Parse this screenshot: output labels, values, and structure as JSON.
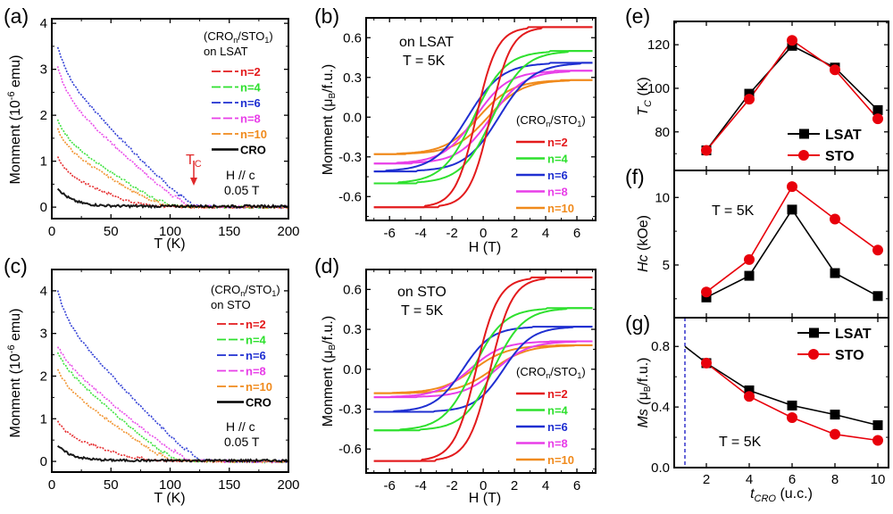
{
  "figure": {
    "panels": [
      "(a)",
      "(b)",
      "(c)",
      "(d)",
      "(e)",
      "(f)",
      "(g)"
    ]
  },
  "colors": {
    "n2": "#e31a1c",
    "n4": "#2ee02e",
    "n6": "#1f2fd1",
    "n8": "#e83ee8",
    "n10": "#f08a1c",
    "CRO": "#000000",
    "LSAT": "#000000",
    "STO": "#e8000b",
    "tc_arrow": "#e0282a",
    "dashed_line": "#3333cc"
  },
  "chart_data": [
    {
      "id": "a",
      "panel_label": "(a)",
      "type": "line",
      "title": "",
      "xlabel": "T (K)",
      "ylabel": "Monment (10^-6 emu)",
      "ylabel_main": "Monment (10",
      "ylabel_sup": "-6",
      "ylabel_tail": " emu)",
      "xlim": [
        0,
        200
      ],
      "ylim": [
        -0.25,
        4.1
      ],
      "xticks": [
        0,
        50,
        100,
        150,
        200
      ],
      "yticks": [
        0,
        1,
        2,
        3,
        4
      ],
      "legend_title_1": "(CRO",
      "legend_title_sub1": "n",
      "legend_title_2": "/STO",
      "legend_title_sub2": "1",
      "legend_title_3": ")",
      "legend_substrate": "on LSAT",
      "legend_placement": "top-right",
      "annotations": {
        "field_dir": "H // c",
        "field_value": "0.05 T",
        "tc_label": "T",
        "tc_sub": "C",
        "tc_at": 120
      },
      "series": [
        {
          "name": "n=2",
          "key": "n2",
          "M0": 1.1,
          "Tc": 80,
          "plateau": 0.75
        },
        {
          "name": "n=4",
          "key": "n4",
          "M0": 1.9,
          "Tc": 100,
          "plateau": 1.55
        },
        {
          "name": "n=6",
          "key": "n6",
          "M0": 3.5,
          "Tc": 120,
          "plateau": 2.95
        },
        {
          "name": "n=8",
          "key": "n8",
          "M0": 3.05,
          "Tc": 115,
          "plateau": 2.5
        },
        {
          "name": "n=10",
          "key": "n10",
          "M0": 1.7,
          "Tc": 95,
          "plateau": 1.35
        },
        {
          "name": "CRO",
          "key": "CRO",
          "M0": 0.4,
          "Tc": 40,
          "plateau": 0.1
        }
      ]
    },
    {
      "id": "c",
      "panel_label": "(c)",
      "type": "line",
      "title": "",
      "xlabel": "T (K)",
      "ylabel": "Monment (10^-6 emu)",
      "ylabel_main": "Monment (10",
      "ylabel_sup": "-6",
      "ylabel_tail": " emu)",
      "xlim": [
        0,
        200
      ],
      "ylim": [
        -0.25,
        4.5
      ],
      "xticks": [
        0,
        50,
        100,
        150,
        200
      ],
      "yticks": [
        0,
        1,
        2,
        3,
        4
      ],
      "legend_title_1": "(CRO",
      "legend_title_sub1": "n",
      "legend_title_2": "/STO",
      "legend_title_sub2": "1",
      "legend_title_3": ")",
      "legend_substrate": "on STO",
      "legend_placement": "top-right",
      "annotations": {
        "field_dir": "H // c",
        "field_value": "0.05 T"
      },
      "series": [
        {
          "name": "n=2",
          "key": "n2",
          "M0": 0.95,
          "Tc": 80,
          "plateau": 0.65
        },
        {
          "name": "n=4",
          "key": "n4",
          "M0": 2.55,
          "Tc": 105,
          "plateau": 2.3
        },
        {
          "name": "n=6",
          "key": "n6",
          "M0": 4.0,
          "Tc": 125,
          "plateau": 3.4
        },
        {
          "name": "n=8",
          "key": "n8",
          "M0": 2.7,
          "Tc": 115,
          "plateau": 2.45
        },
        {
          "name": "n=10",
          "key": "n10",
          "M0": 2.15,
          "Tc": 100,
          "plateau": 1.85
        },
        {
          "name": "CRO",
          "key": "CRO",
          "M0": 0.35,
          "Tc": 40,
          "plateau": 0.1
        }
      ]
    },
    {
      "id": "b",
      "panel_label": "(b)",
      "type": "line",
      "title": "",
      "xlabel": "H (T)",
      "ylabel_main": "Monment (",
      "ylabel_mu": "μ",
      "ylabel_sub": "B",
      "ylabel_tail": "/f.u.)",
      "xlim": [
        -7.5,
        7.2
      ],
      "ylim": [
        -0.78,
        0.75
      ],
      "xticks": [
        -6,
        -4,
        -2,
        0,
        2,
        4,
        6
      ],
      "yticks": [
        -0.6,
        -0.3,
        0.0,
        0.3,
        0.6
      ],
      "ytick_labels": [
        "-0.6",
        "-0.3",
        "0.0",
        "0.3",
        "0.6"
      ],
      "annotation_1": "on LSAT",
      "annotation_2": "T = 5K",
      "legend_title_1": "(CRO",
      "legend_title_sub1": "n",
      "legend_title_2": "/STO",
      "legend_title_sub2": "1",
      "legend_title_3": ")",
      "legend_placement": "bottom-right",
      "series": [
        {
          "name": "n=2",
          "key": "n2",
          "Ms": 0.68,
          "Hc": 0.45,
          "width": 1.6
        },
        {
          "name": "n=4",
          "key": "n4",
          "Ms": 0.5,
          "Hc": 0.6,
          "width": 2.4
        },
        {
          "name": "n=6",
          "key": "n6",
          "Ms": 0.41,
          "Hc": 1.0,
          "width": 2.6
        },
        {
          "name": "n=8",
          "key": "n8",
          "Ms": 0.35,
          "Hc": 0.5,
          "width": 2.5
        },
        {
          "name": "n=10",
          "key": "n10",
          "Ms": 0.28,
          "Hc": 0.3,
          "width": 2.6
        }
      ]
    },
    {
      "id": "d",
      "panel_label": "(d)",
      "type": "line",
      "title": "",
      "xlabel": "H (T)",
      "ylabel_main": "Monment (",
      "ylabel_mu": "μ",
      "ylabel_sub": "B",
      "ylabel_tail": "/f.u.)",
      "xlim": [
        -7.5,
        7.2
      ],
      "ylim": [
        -0.78,
        0.75
      ],
      "xticks": [
        -6,
        -4,
        -2,
        0,
        2,
        4,
        6
      ],
      "yticks": [
        -0.6,
        -0.3,
        0.0,
        0.3,
        0.6
      ],
      "ytick_labels": [
        "-0.6",
        "-0.3",
        "0.0",
        "0.3",
        "0.6"
      ],
      "annotation_1": "on STO",
      "annotation_2": "T = 5K",
      "legend_title_1": "(CRO",
      "legend_title_sub1": "n",
      "legend_title_2": "/STO",
      "legend_title_sub2": "1",
      "legend_title_3": ")",
      "legend_placement": "bottom-right",
      "series": [
        {
          "name": "n=2",
          "key": "n2",
          "Ms": 0.69,
          "Hc": 0.45,
          "width": 1.7
        },
        {
          "name": "n=4",
          "key": "n4",
          "Ms": 0.46,
          "Hc": 0.65,
          "width": 2.3
        },
        {
          "name": "n=6",
          "key": "n6",
          "Ms": 0.32,
          "Hc": 1.3,
          "width": 2.2
        },
        {
          "name": "n=8",
          "key": "n8",
          "Ms": 0.21,
          "Hc": 0.85,
          "width": 2.5
        },
        {
          "name": "n=10",
          "key": "n10",
          "Ms": 0.18,
          "Hc": 0.6,
          "width": 2.6
        }
      ]
    },
    {
      "id": "e",
      "panel_label": "(e)",
      "type": "line",
      "title": "",
      "xlabel": "",
      "ylabel_main": "T",
      "ylabel_sub": "C",
      "ylabel_tail": " (K)",
      "x": [
        2,
        4,
        6,
        8,
        10
      ],
      "xlim": [
        0.5,
        10.5
      ],
      "ylim": [
        62.3,
        130.7
      ],
      "yticks": [
        80,
        100,
        120
      ],
      "legend_placement": "bottom-right",
      "series": [
        {
          "name": "LSAT",
          "key": "LSAT",
          "marker": "square",
          "values": [
            71.5,
            97.5,
            119.5,
            109.5,
            90
          ]
        },
        {
          "name": "STO",
          "key": "STO",
          "marker": "circle",
          "values": [
            71.5,
            95,
            122,
            108.5,
            86
          ]
        }
      ]
    },
    {
      "id": "f",
      "panel_label": "(f)",
      "type": "line",
      "title": "",
      "xlabel": "",
      "ylabel_main": "Hc",
      "ylabel_tail": " (kOe)",
      "annotation": "T = 5K",
      "x": [
        2,
        4,
        6,
        8,
        10
      ],
      "xlim": [
        0.5,
        10.5
      ],
      "ylim": [
        1.1,
        12.0
      ],
      "yticks": [
        5,
        10
      ],
      "series": [
        {
          "name": "LSAT",
          "key": "LSAT",
          "marker": "square",
          "values": [
            2.6,
            4.2,
            9.1,
            4.4,
            2.7
          ]
        },
        {
          "name": "STO",
          "key": "STO",
          "marker": "circle",
          "values": [
            3.0,
            5.4,
            10.8,
            8.4,
            6.1
          ]
        }
      ]
    },
    {
      "id": "g",
      "panel_label": "(g)",
      "type": "line",
      "title": "",
      "xlabel_main": "t",
      "xlabel_sub": "CRO",
      "xlabel_tail": " (u.c.)",
      "ylabel_main": "Ms (",
      "ylabel_mu": "μ",
      "ylabel_sub": "B",
      "ylabel_tail": "/f.u.)",
      "annotation": "T = 5K",
      "x": [
        2,
        4,
        6,
        8,
        10
      ],
      "xlim": [
        0.5,
        10.5
      ],
      "ylim": [
        0.0,
        0.99
      ],
      "xticks": [
        2,
        4,
        6,
        8,
        10
      ],
      "yticks": [
        0.0,
        0.4,
        0.8
      ],
      "ytick_labels": [
        "0.0",
        "0.4",
        "0.8"
      ],
      "dashed_vline_x": 1,
      "extrapolation": {
        "x": 1,
        "y": 0.8
      },
      "legend_placement": "top-right",
      "series": [
        {
          "name": "LSAT",
          "key": "LSAT",
          "marker": "square",
          "values": [
            0.69,
            0.51,
            0.41,
            0.35,
            0.28
          ]
        },
        {
          "name": "STO",
          "key": "STO",
          "marker": "circle",
          "values": [
            0.69,
            0.47,
            0.33,
            0.22,
            0.18
          ]
        }
      ]
    }
  ]
}
